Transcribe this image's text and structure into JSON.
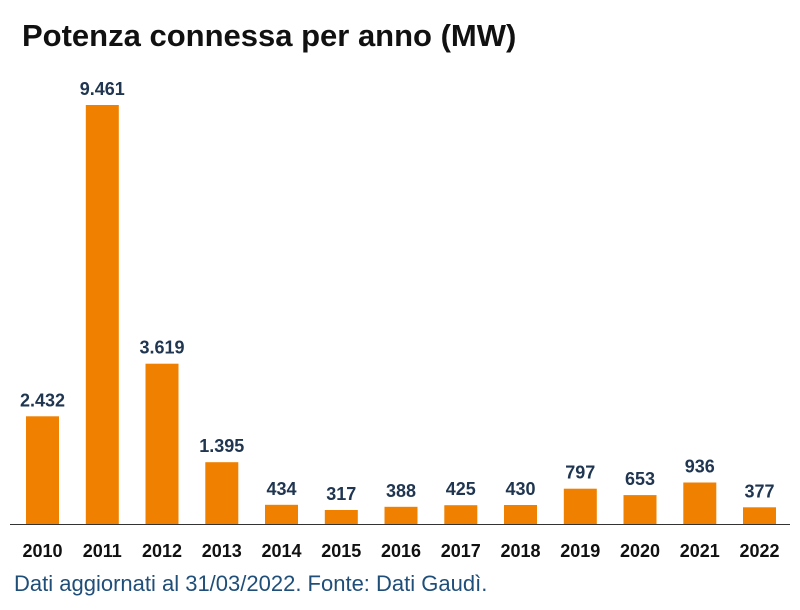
{
  "chart_data": {
    "type": "bar",
    "title": "Potenza connessa per anno (MW)",
    "xlabel": "",
    "ylabel": "",
    "categories": [
      "2010",
      "2011",
      "2012",
      "2013",
      "2014",
      "2015",
      "2016",
      "2017",
      "2018",
      "2019",
      "2020",
      "2021",
      "2022"
    ],
    "values": [
      2432,
      9461,
      3619,
      1395,
      434,
      317,
      388,
      425,
      430,
      797,
      653,
      936,
      377
    ],
    "value_labels": [
      "2.432",
      "9.461",
      "3.619",
      "1.395",
      "434",
      "317",
      "388",
      "425",
      "430",
      "797",
      "653",
      "936",
      "377"
    ],
    "ylim": [
      0,
      9461
    ],
    "grid": false,
    "legend": "none",
    "bar_color": "#f08000",
    "value_label_color": "#1f3550",
    "baseline_color": "#333333"
  },
  "footer": {
    "note": "Dati aggiornati al 31/03/2022. Fonte: Dati Gaudì."
  }
}
